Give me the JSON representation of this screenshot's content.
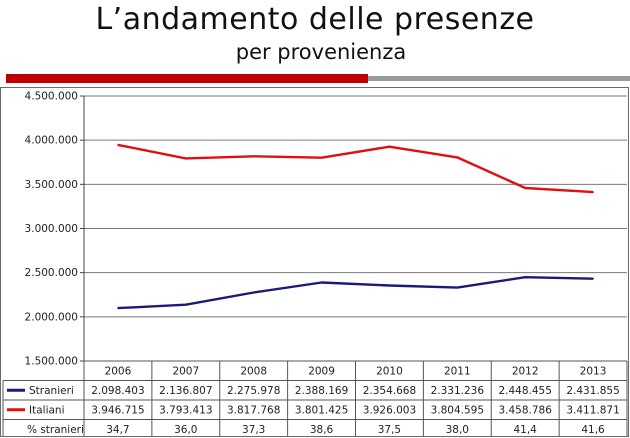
{
  "slide": {
    "title": "L’andamento delle presenze",
    "subtitle": "per provenienza"
  },
  "chart_data": {
    "type": "line",
    "categories": [
      "2006",
      "2007",
      "2008",
      "2009",
      "2010",
      "2011",
      "2012",
      "2013"
    ],
    "ylim": [
      1500000,
      4500000
    ],
    "y_ticks": [
      1500000,
      2000000,
      2500000,
      3000000,
      3500000,
      4000000,
      4500000
    ],
    "y_tick_labels": [
      "1.500.000",
      "2.000.000",
      "2.500.000",
      "3.000.000",
      "3.500.000",
      "4.000.000",
      "4.500.000"
    ],
    "grid": true,
    "series": [
      {
        "name": "Stranieri",
        "color": "#1a1a7a",
        "values": [
          2098403,
          2136807,
          2275978,
          2388169,
          2354668,
          2331236,
          2448455,
          2431855
        ],
        "labels": [
          "2.098.403",
          "2.136.807",
          "2.275.978",
          "2.388.169",
          "2.354.668",
          "2.331.236",
          "2.448.455",
          "2.431.855"
        ]
      },
      {
        "name": "Italiani",
        "color": "#e01010",
        "values": [
          3946715,
          3793413,
          3817768,
          3801425,
          3926003,
          3804595,
          3458786,
          3411871
        ],
        "labels": [
          "3.946.715",
          "3.793.413",
          "3.817.768",
          "3.801.425",
          "3.926.003",
          "3.804.595",
          "3.458.786",
          "3.411.871"
        ]
      }
    ],
    "table_extra_row": {
      "name": "% stranieri",
      "labels": [
        "34,7",
        "36,0",
        "37,3",
        "38,6",
        "37,5",
        "38,0",
        "41,4",
        "41,6"
      ]
    }
  }
}
